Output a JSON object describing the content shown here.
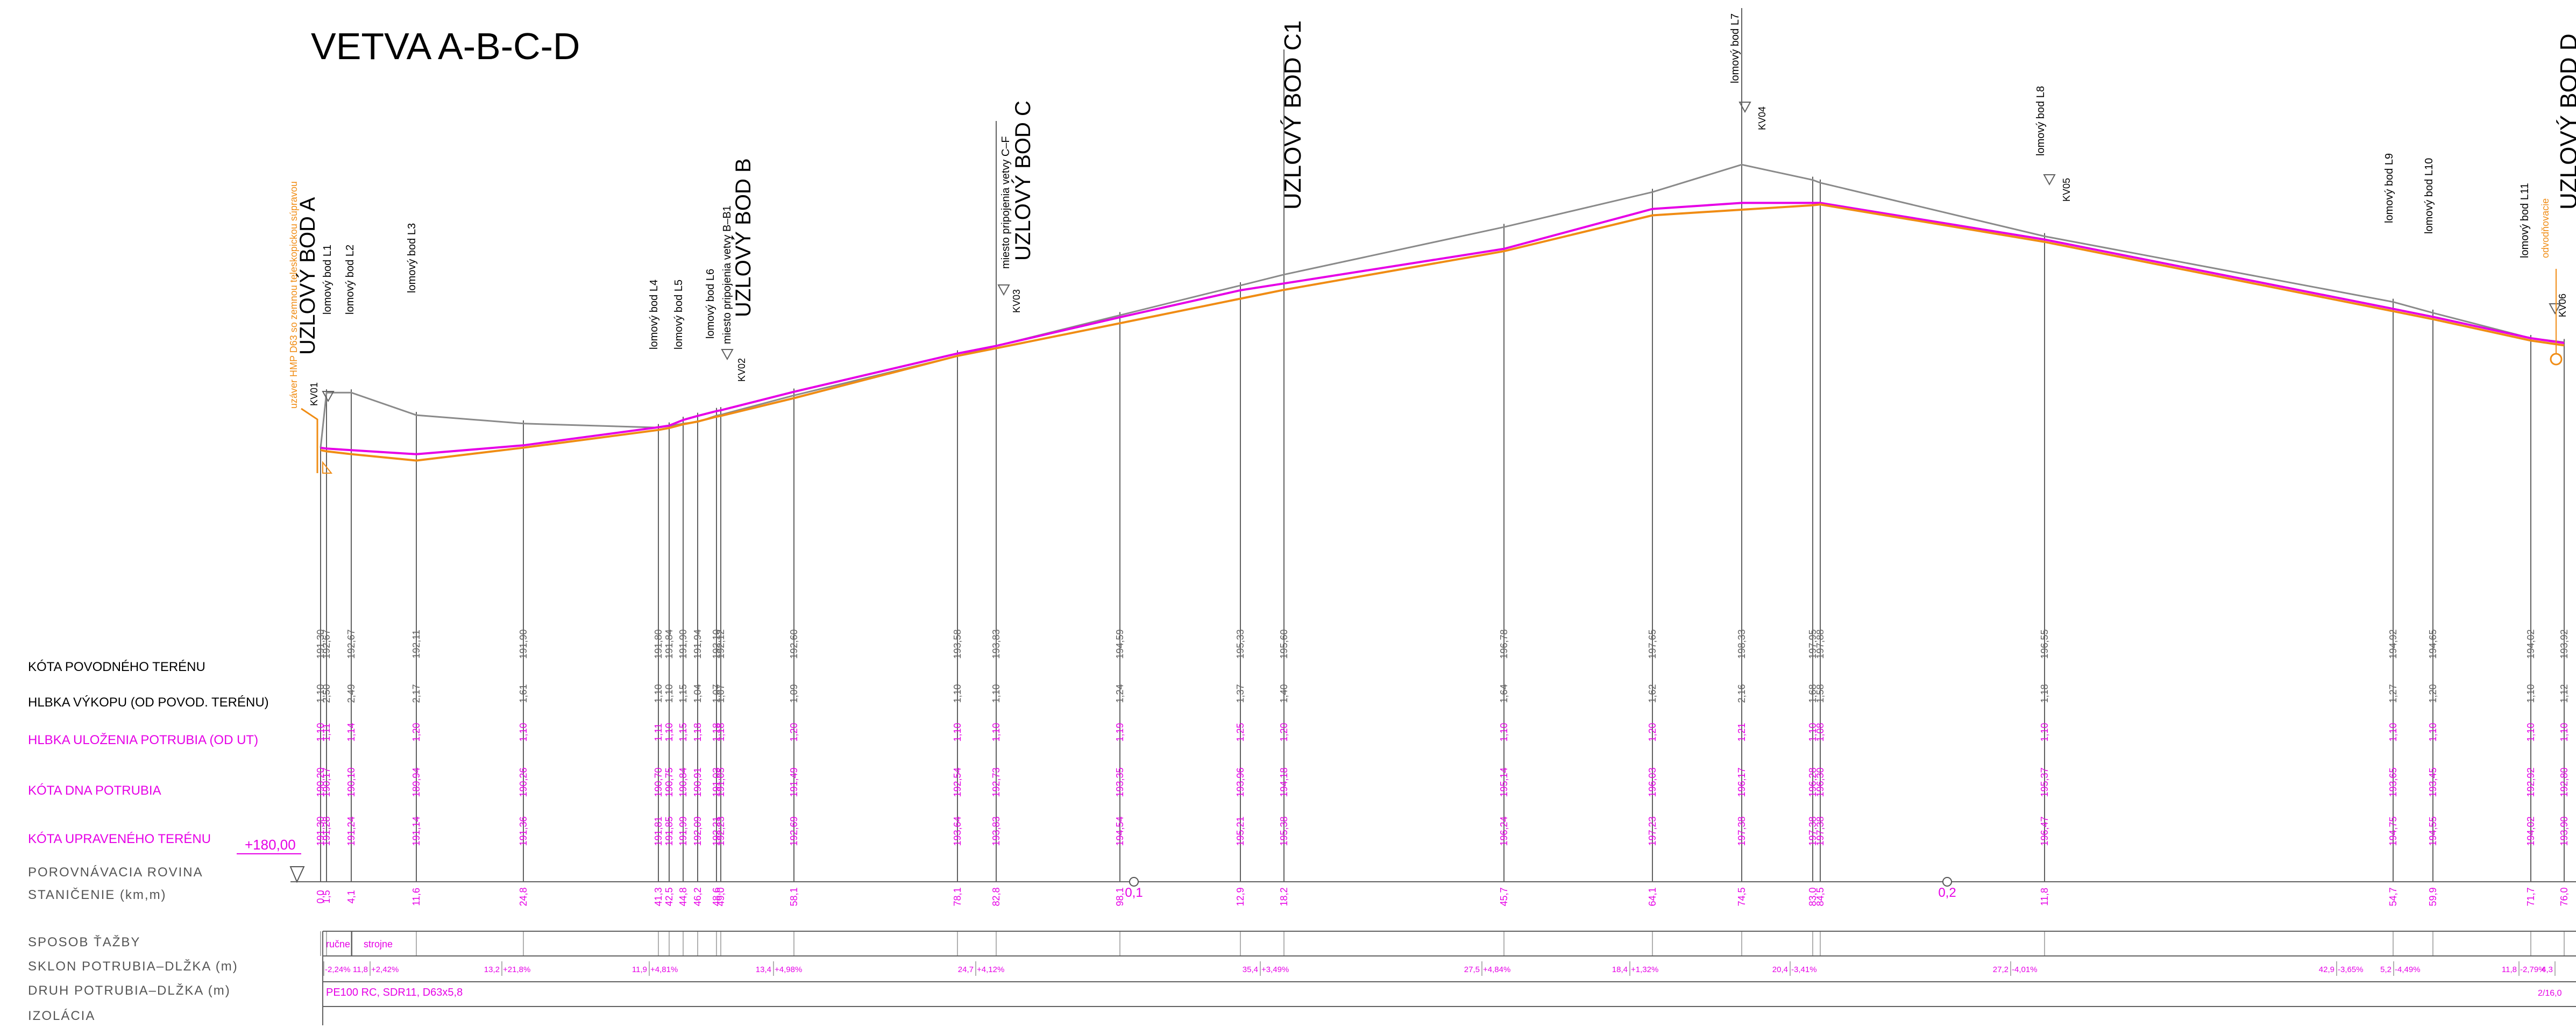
{
  "title": "VETVA A-B-C-D",
  "colors": {
    "terrain": "#8a8a8a",
    "design_terrain": "#e600e6",
    "pipe_bottom": "#f08c14",
    "grid": "#606060",
    "text": "#000000"
  },
  "row_labels": {
    "kota_povodneho": "KÓTA POVODNÉHO TERÉNU",
    "hlbka_vykopu": "HLBKA VÝKOPU (OD POVOD. TERÉNU)",
    "hlbka_ulozenia": "HLBKA ULOŽENIA POTRUBIA (OD UT)",
    "kota_dna": "KÓTA DNA POTRUBIA",
    "kota_upraveneho": "KÓTA UPRAVENÉHO TERÉNU",
    "porovnavacia": "POROVNÁVACIA ROVINA",
    "stanicenie": "STANIČENIE (km,m)",
    "sposob": "SPOSOB ŤAŽBY",
    "sklon": "SKLON POTRUBIA–DLŽKA (m)",
    "druh": "DRUH POTRUBIA–DLŽKA (m)",
    "izolacia": "IZOLÁCIA"
  },
  "datum_label": "+180,00",
  "sposob": {
    "manual": "ručne",
    "machine": "strojne"
  },
  "pipe_type": "PE100 RC, SDR11, D63x5,8",
  "pipe_type_end": "2/16,0",
  "slopes": [
    {
      "len": "",
      "pct": "-2,24%"
    },
    {
      "len": "11,8",
      "pct": "+2,42%"
    },
    {
      "len": "13,2",
      "pct": "+21,8%"
    },
    {
      "len": "11,9",
      "pct": "+4,81%"
    },
    {
      "len": "13,4",
      "pct": "+4,98%"
    },
    {
      "len": "24,7",
      "pct": "+4,12%"
    },
    {
      "len": "35,4",
      "pct": "+3,49%"
    },
    {
      "len": "27,5",
      "pct": "+4,84%"
    },
    {
      "len": "18,4",
      "pct": "+1,32%"
    },
    {
      "len": "20,4",
      "pct": "-3,41%"
    },
    {
      "len": "27,2",
      "pct": "-4,01%"
    },
    {
      "len": "42,9",
      "pct": "-3,65%"
    },
    {
      "len": "5,2",
      "pct": "-4,49%"
    },
    {
      "len": "11,8",
      "pct": "-2,79%"
    },
    {
      "len": "4,3",
      "pct": ""
    }
  ],
  "km_marks": [
    "0,1",
    "0,2"
  ],
  "stations": [
    {
      "stan": "0,0",
      "orig": "191,30",
      "dig": "1,10",
      "depth": "1,10",
      "bottom": "190,20",
      "design": "191,30"
    },
    {
      "stan": "1,5",
      "orig": "192,67",
      "dig": "2,50",
      "depth": "1,11",
      "bottom": "190,17",
      "design": "191,28"
    },
    {
      "stan": "4,1",
      "orig": "192,67",
      "dig": "2,49",
      "depth": "1,14",
      "bottom": "190,10",
      "design": "191,24"
    },
    {
      "stan": "11,6",
      "orig": "192,11",
      "dig": "2,17",
      "depth": "1,20",
      "bottom": "189,94",
      "design": "191,14"
    },
    {
      "stan": "24,8",
      "orig": "191,90",
      "dig": "1,61",
      "depth": "1,10",
      "bottom": "190,26",
      "design": "191,36"
    },
    {
      "stan": "41,3",
      "orig": "191,80",
      "dig": "1,10",
      "depth": "1,11",
      "bottom": "190,70",
      "design": "191,81"
    },
    {
      "stan": "42,5",
      "orig": "191,84",
      "dig": "1,10",
      "depth": "1,10",
      "bottom": "190,75",
      "design": "191,85"
    },
    {
      "stan": "44,8",
      "orig": "191,90",
      "dig": "1,15",
      "depth": "1,15",
      "bottom": "190,84",
      "design": "191,99"
    },
    {
      "stan": "46,2",
      "orig": "191,94",
      "dig": "1,04",
      "depth": "1,18",
      "bottom": "190,91",
      "design": "192,09"
    },
    {
      "stan": "48,6",
      "orig": "192,10",
      "dig": "1,07",
      "depth": "1,18",
      "bottom": "191,03",
      "design": "192,21"
    },
    {
      "stan": "49,0",
      "orig": "192,12",
      "dig": "1,07",
      "depth": "1,18",
      "bottom": "191,05",
      "design": "192,23"
    },
    {
      "stan": "58,1",
      "orig": "192,60",
      "dig": "1,09",
      "depth": "1,20",
      "bottom": "191,49",
      "design": "192,69"
    },
    {
      "stan": "78,1",
      "orig": "193,58",
      "dig": "1,10",
      "depth": "1,10",
      "bottom": "192,54",
      "design": "193,64"
    },
    {
      "stan": "82,8",
      "orig": "193,83",
      "dig": "1,10",
      "depth": "1,10",
      "bottom": "192,73",
      "design": "193,83"
    },
    {
      "stan": "98,1",
      "orig": "194,59",
      "dig": "1,24",
      "depth": "1,19",
      "bottom": "193,35",
      "design": "194,54"
    },
    {
      "stan": "12,9",
      "orig": "195,33",
      "dig": "1,37",
      "depth": "1,25",
      "bottom": "193,96",
      "design": "195,21"
    },
    {
      "stan": "18,2",
      "orig": "195,60",
      "dig": "1,40",
      "depth": "1,20",
      "bottom": "194,18",
      "design": "195,38"
    },
    {
      "stan": "45,7",
      "orig": "196,78",
      "dig": "1,64",
      "depth": "1,10",
      "bottom": "195,14",
      "design": "196,24"
    },
    {
      "stan": "64,1",
      "orig": "197,65",
      "dig": "1,62",
      "depth": "1,20",
      "bottom": "196,03",
      "design": "197,23"
    },
    {
      "stan": "74,5",
      "orig": "198,33",
      "dig": "2,16",
      "depth": "1,21",
      "bottom": "196,17",
      "design": "197,38"
    },
    {
      "stan": "83,0",
      "orig": "197,95",
      "dig": "1,68",
      "depth": "1,10",
      "bottom": "196,28",
      "design": "197,38"
    },
    {
      "stan": "84,5",
      "orig": "197,88",
      "dig": "1,58",
      "depth": "1,08",
      "bottom": "196,30",
      "design": "197,38"
    },
    {
      "stan": "11,8",
      "orig": "196,55",
      "dig": "1,18",
      "depth": "1,10",
      "bottom": "195,37",
      "design": "196,47"
    },
    {
      "stan": "54,7",
      "orig": "194,92",
      "dig": "1,27",
      "depth": "1,10",
      "bottom": "193,65",
      "design": "194,75"
    },
    {
      "stan": "59,9",
      "orig": "194,65",
      "dig": "1,20",
      "depth": "1,10",
      "bottom": "193,45",
      "design": "194,55"
    },
    {
      "stan": "71,7",
      "orig": "194,02",
      "dig": "1,10",
      "depth": "1,10",
      "bottom": "192,92",
      "design": "194,02"
    },
    {
      "stan": "76,0",
      "orig": "193,92",
      "dig": "1,12",
      "depth": "1,10",
      "bottom": "192,80",
      "design": "193,90"
    }
  ],
  "node_labels": [
    "UZLOVÝ BOD A",
    "UZLOVÝ BOD B",
    "UZLOVÝ BOD C",
    "UZLOVÝ BOD C1",
    "UZLOVÝ BOD D"
  ],
  "break_labels": [
    "lomový bod L1",
    "lomový bod L2",
    "lomový bod L3",
    "lomový bod L4",
    "lomový bod L5",
    "lomový bod L6",
    "lomový bod L7",
    "lomový bod L8",
    "lomový bod L9",
    "lomový bod L10",
    "lomový bod L11"
  ],
  "notes": [
    "uzáver HMP D63 so zemnou teleskopickou súpravou",
    "miesto pripojenia vetvy B–B1",
    "miesto pripojenia vetvy C–F",
    "odvodňovacie"
  ],
  "shafts": [
    "KV01",
    "KV02",
    "KV03",
    "KV04",
    "KV05",
    "KV06"
  ]
}
